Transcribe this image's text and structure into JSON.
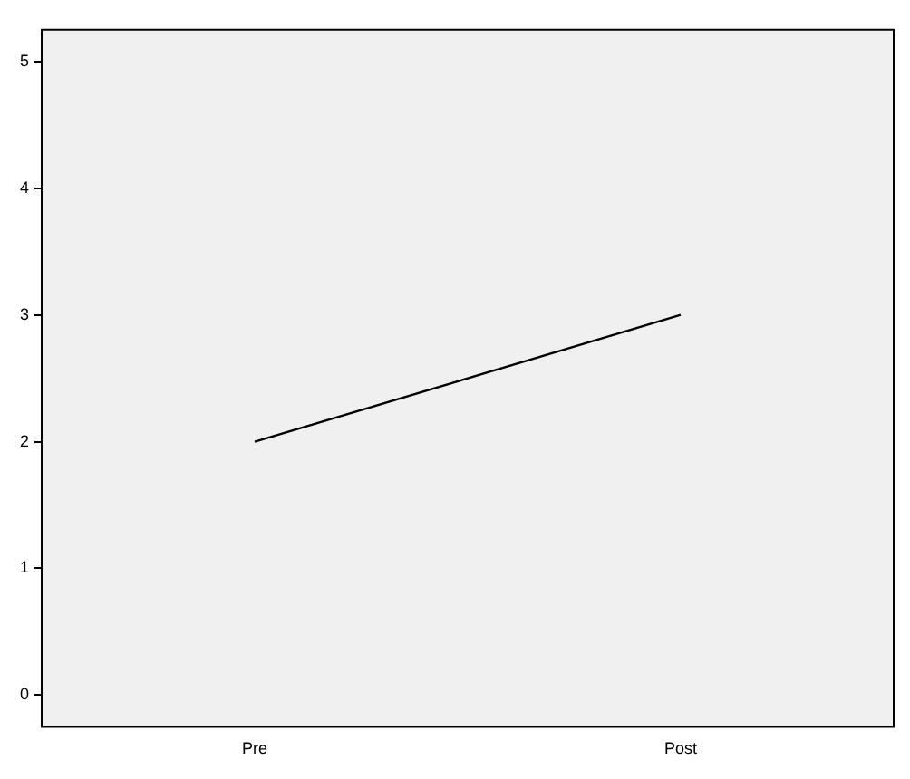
{
  "chart_data": {
    "type": "line",
    "categories": [
      "Pre",
      "Post"
    ],
    "series": [
      {
        "color": "#000000",
        "values": [
          2,
          3
        ]
      }
    ],
    "ylim": [
      -0.25,
      5.25
    ],
    "yticks": [
      0,
      1,
      2,
      3,
      4,
      5
    ],
    "grid": false,
    "legend": false,
    "marker": "none",
    "line_style": "solid"
  }
}
